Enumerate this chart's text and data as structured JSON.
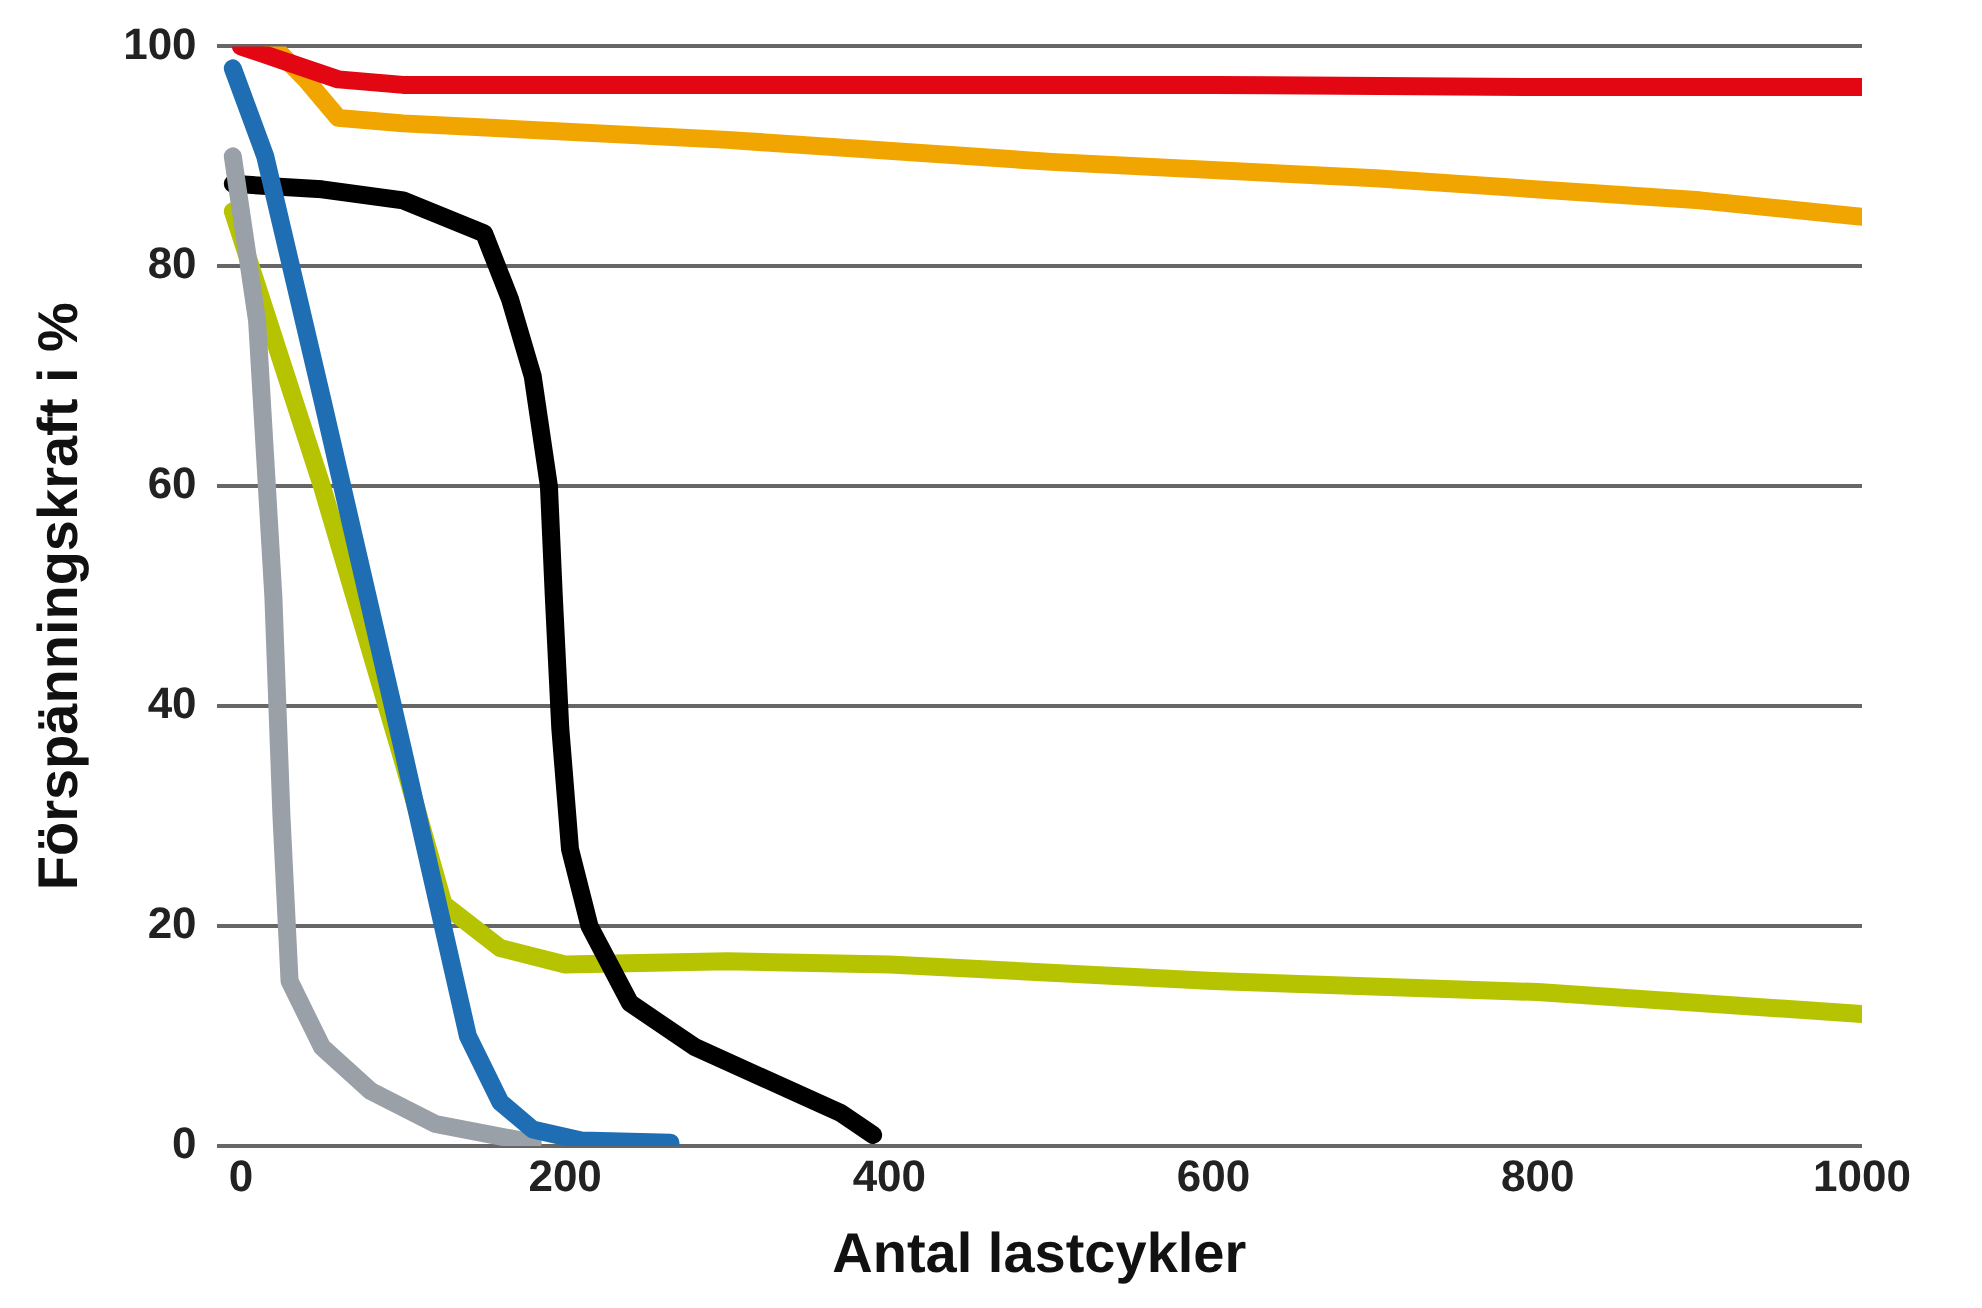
{
  "chart_data": {
    "type": "line",
    "xlabel": "Antal lastcykler",
    "ylabel": "Förspänningskraft i %",
    "xlim": [
      -15,
      1000
    ],
    "xticks": [
      0,
      200,
      400,
      600,
      800,
      1000
    ],
    "ylim": [
      0,
      100
    ],
    "yticks": [
      0,
      20,
      40,
      60,
      80,
      100
    ],
    "grid": "y",
    "legend": false,
    "marker": "none",
    "line_style": "solid",
    "series": [
      {
        "color": "#e30613",
        "x": [
          0,
          30,
          60,
          100,
          200,
          400,
          600,
          800,
          1000
        ],
        "values": [
          100,
          98.5,
          97,
          96.5,
          96.5,
          96.5,
          96.5,
          96.3,
          96.3
        ]
      },
      {
        "color": "#f0a500",
        "x": [
          20,
          40,
          60,
          100,
          300,
          500,
          700,
          900,
          1000
        ],
        "values": [
          100,
          97,
          93.5,
          93,
          91.5,
          89.5,
          88,
          86,
          84.5
        ]
      },
      {
        "color": "#1f6eb4",
        "x": [
          -5,
          15,
          50,
          100,
          140,
          160,
          180,
          210,
          265
        ],
        "values": [
          98,
          90,
          68,
          36,
          10,
          4,
          1.5,
          0.5,
          0.3
        ]
      },
      {
        "color": "#9aa0a8",
        "x": [
          -5,
          10,
          20,
          25,
          30,
          50,
          80,
          120,
          180
        ],
        "values": [
          90,
          75,
          50,
          30,
          15,
          9,
          5,
          2,
          0.3
        ]
      },
      {
        "color": "#000000",
        "x": [
          -5,
          50,
          100,
          150,
          166,
          180,
          190,
          193,
          197,
          203,
          215,
          240,
          280,
          340,
          370,
          390
        ],
        "values": [
          87.5,
          87,
          86,
          83,
          77,
          70,
          60,
          50,
          38,
          27,
          20,
          13,
          9,
          5,
          3,
          1
        ]
      },
      {
        "color": "#b5c300",
        "x": [
          -5,
          50,
          100,
          125,
          160,
          200,
          300,
          400,
          600,
          800,
          1000
        ],
        "values": [
          85,
          60,
          35,
          22,
          18,
          16.5,
          16.8,
          16.5,
          15,
          14,
          12
        ]
      }
    ]
  }
}
